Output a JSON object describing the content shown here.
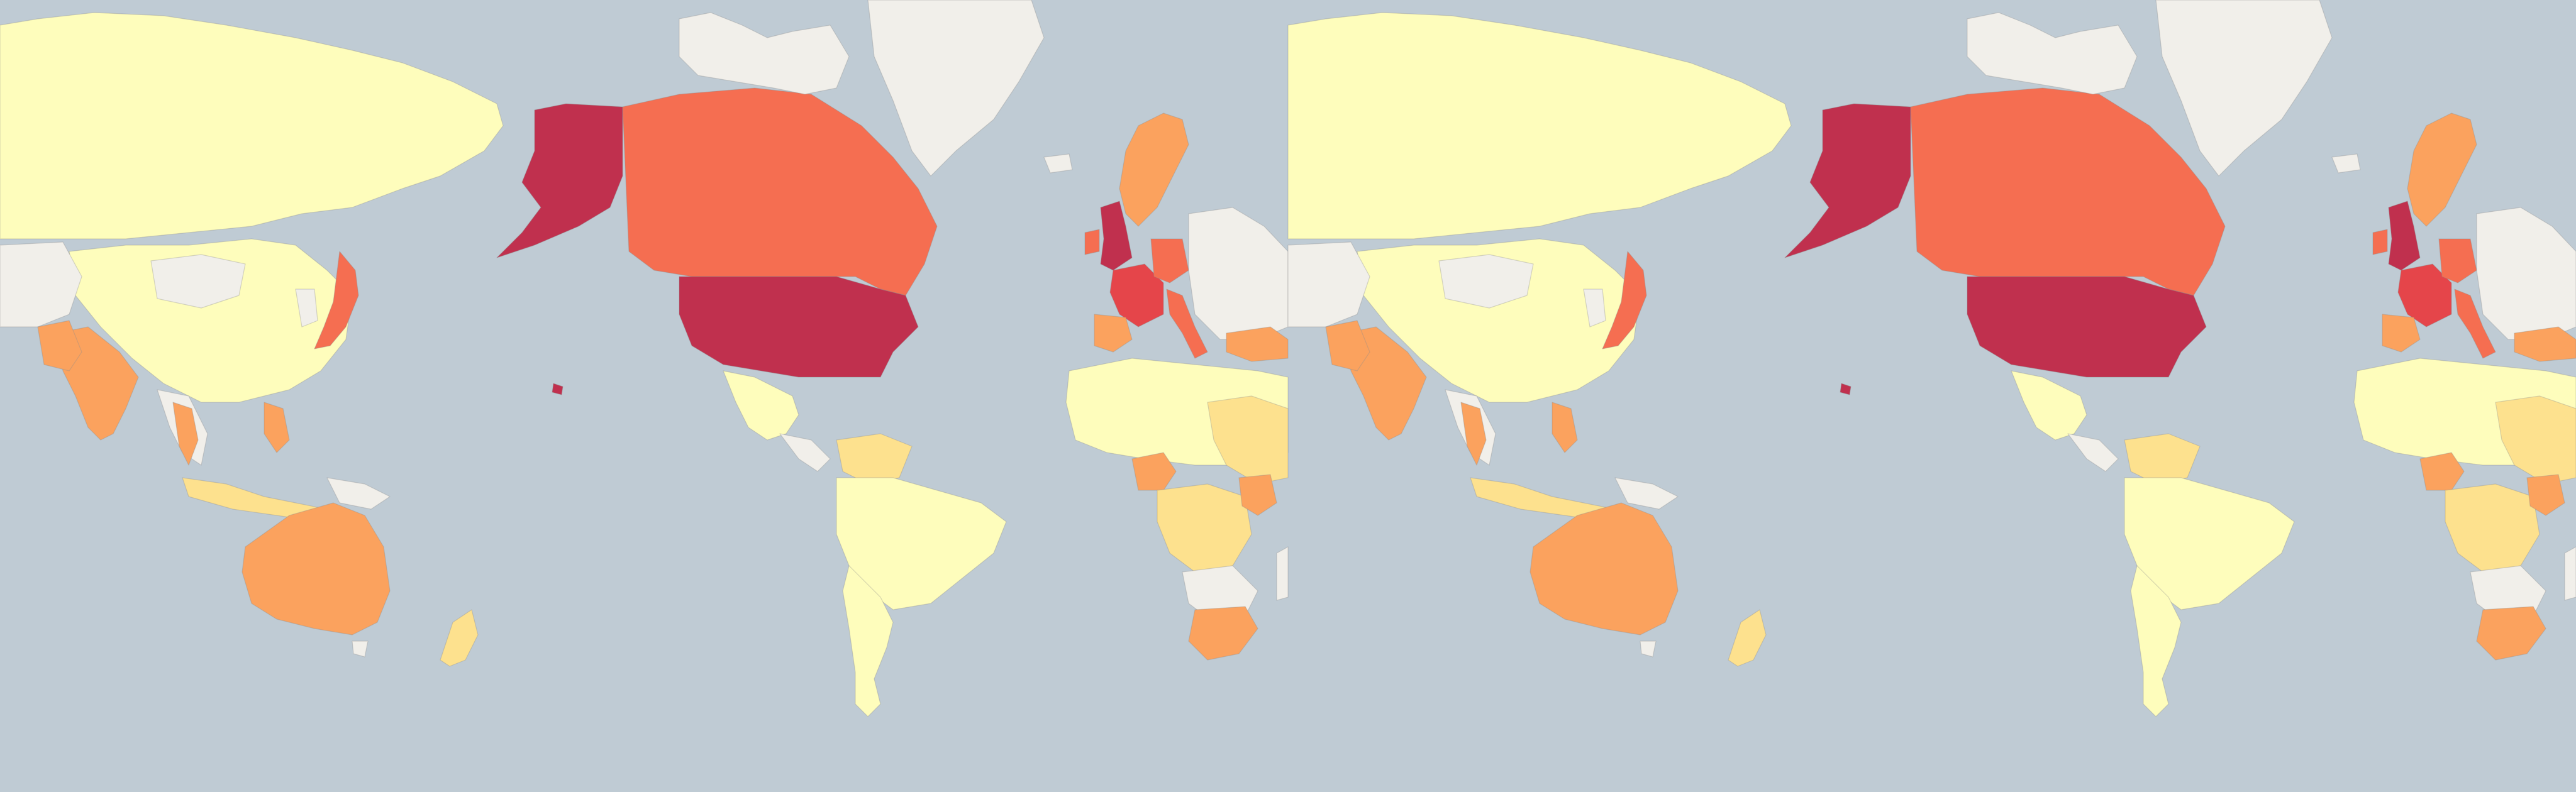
{
  "map": {
    "projection": "mercator",
    "wraps_horizontally": true,
    "ocean_color": "#bfcbd4",
    "no_data_color": "#f1efea",
    "legend": [],
    "color_scale": [
      {
        "level": 1,
        "color": "#fefdbc"
      },
      {
        "level": 2,
        "color": "#fde18e"
      },
      {
        "level": 3,
        "color": "#fba25e"
      },
      {
        "level": 4,
        "color": "#f56e51"
      },
      {
        "level": 5,
        "color": "#e5454a"
      },
      {
        "level": 6,
        "color": "#c0304e"
      }
    ],
    "regions": [
      {
        "name": "united-states",
        "level": 6
      },
      {
        "name": "alaska",
        "level": 6
      },
      {
        "name": "hawaii",
        "level": 6
      },
      {
        "name": "united-kingdom",
        "level": 6
      },
      {
        "name": "france",
        "level": 5
      },
      {
        "name": "canada",
        "level": 4
      },
      {
        "name": "germany",
        "level": 4
      },
      {
        "name": "ireland",
        "level": 4
      },
      {
        "name": "japan",
        "level": 4
      },
      {
        "name": "italy",
        "level": 4
      },
      {
        "name": "australia",
        "level": 3
      },
      {
        "name": "india",
        "level": 3
      },
      {
        "name": "pakistan",
        "level": 3
      },
      {
        "name": "south-africa",
        "level": 3
      },
      {
        "name": "scandinavia",
        "level": 3
      },
      {
        "name": "spain",
        "level": 3
      },
      {
        "name": "turkey",
        "level": 3
      },
      {
        "name": "kenya",
        "level": 3
      },
      {
        "name": "philippines",
        "level": 3
      },
      {
        "name": "thailand",
        "level": 3
      },
      {
        "name": "nigeria",
        "level": 3
      },
      {
        "name": "new-zealand",
        "level": 2
      },
      {
        "name": "east-africa",
        "level": 2
      },
      {
        "name": "central-africa",
        "level": 2
      },
      {
        "name": "venezuela",
        "level": 2
      },
      {
        "name": "indonesia",
        "level": 2
      },
      {
        "name": "russia",
        "level": 1
      },
      {
        "name": "china",
        "level": 1
      },
      {
        "name": "brazil",
        "level": 1
      },
      {
        "name": "south-america",
        "level": 1
      },
      {
        "name": "mexico",
        "level": 1
      },
      {
        "name": "north-africa",
        "level": 1
      },
      {
        "name": "greenland",
        "level": 0
      },
      {
        "name": "mongolia",
        "level": 0
      },
      {
        "name": "papua-new-guinea",
        "level": 0
      }
    ]
  }
}
